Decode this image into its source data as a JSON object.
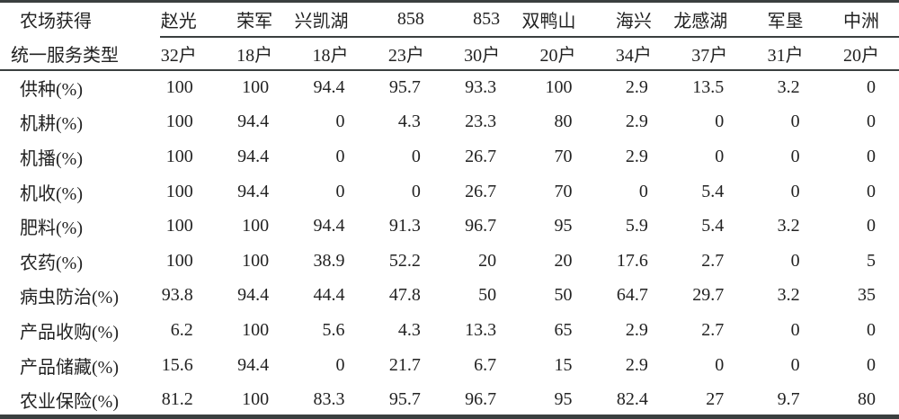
{
  "header": {
    "corner_line1": "农场获得",
    "corner_line2": "统一服务类型",
    "farms": [
      "赵光",
      "荣军",
      "兴凯湖",
      "858",
      "853",
      "双鸭山",
      "海兴",
      "龙感湖",
      "军垦",
      "中洲"
    ],
    "households": [
      "32户",
      "18户",
      "18户",
      "23户",
      "30户",
      "20户",
      "34户",
      "37户",
      "31户",
      "20户"
    ]
  },
  "rows": [
    {
      "label": "供种(%)",
      "values": [
        "100",
        "100",
        "94.4",
        "95.7",
        "93.3",
        "100",
        "2.9",
        "13.5",
        "3.2",
        "0"
      ]
    },
    {
      "label": "机耕(%)",
      "values": [
        "100",
        "94.4",
        "0",
        "4.3",
        "23.3",
        "80",
        "2.9",
        "0",
        "0",
        "0"
      ]
    },
    {
      "label": "机播(%)",
      "values": [
        "100",
        "94.4",
        "0",
        "0",
        "26.7",
        "70",
        "2.9",
        "0",
        "0",
        "0"
      ]
    },
    {
      "label": "机收(%)",
      "values": [
        "100",
        "94.4",
        "0",
        "0",
        "26.7",
        "70",
        "0",
        "5.4",
        "0",
        "0"
      ]
    },
    {
      "label": "肥料(%)",
      "values": [
        "100",
        "100",
        "94.4",
        "91.3",
        "96.7",
        "95",
        "5.9",
        "5.4",
        "3.2",
        "0"
      ]
    },
    {
      "label": "农药(%)",
      "values": [
        "100",
        "100",
        "38.9",
        "52.2",
        "20",
        "20",
        "17.6",
        "2.7",
        "0",
        "5"
      ]
    },
    {
      "label": "病虫防治(%)",
      "values": [
        "93.8",
        "94.4",
        "44.4",
        "47.8",
        "50",
        "50",
        "64.7",
        "29.7",
        "3.2",
        "35"
      ]
    },
    {
      "label": "产品收购(%)",
      "values": [
        "6.2",
        "100",
        "5.6",
        "4.3",
        "13.3",
        "65",
        "2.9",
        "2.7",
        "0",
        "0"
      ]
    },
    {
      "label": "产品储藏(%)",
      "values": [
        "15.6",
        "94.4",
        "0",
        "21.7",
        "6.7",
        "15",
        "2.9",
        "0",
        "0",
        "0"
      ]
    },
    {
      "label": "农业保险(%)",
      "values": [
        "81.2",
        "100",
        "83.3",
        "95.7",
        "96.7",
        "95",
        "82.4",
        "27",
        "9.7",
        "80"
      ]
    }
  ]
}
